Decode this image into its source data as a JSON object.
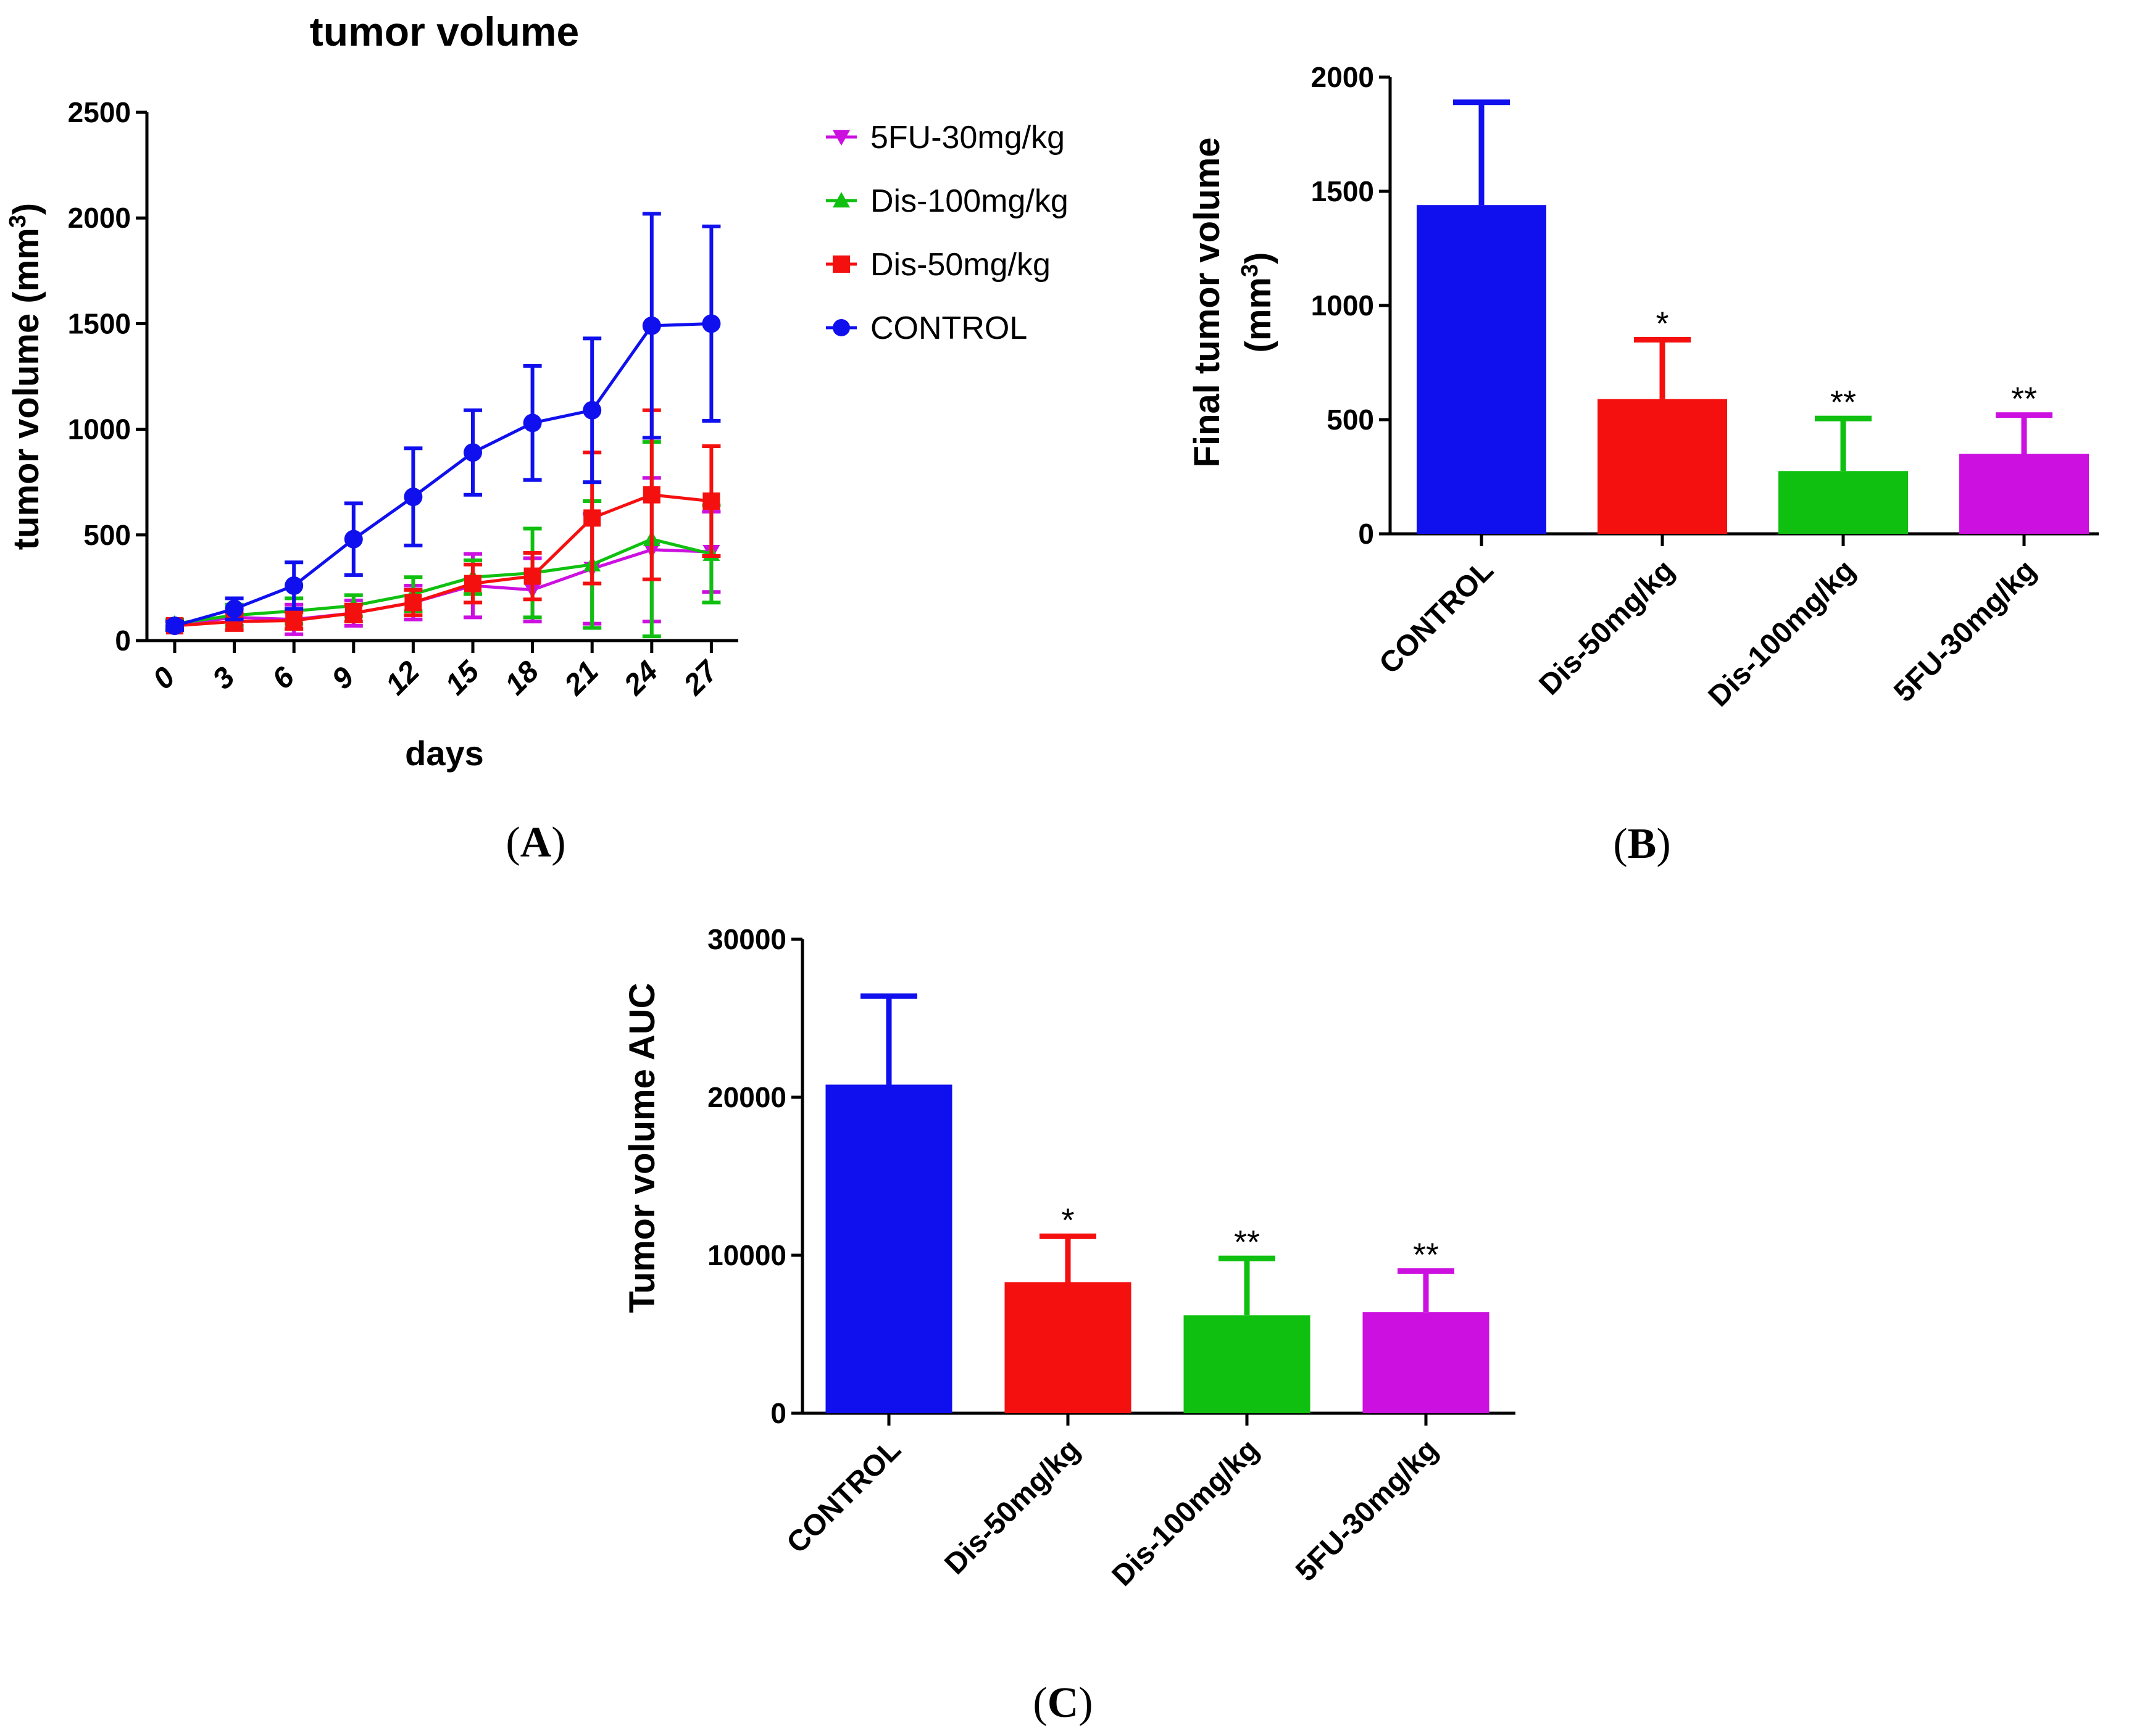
{
  "colors": {
    "CONTROL": "#1010ee",
    "Dis-50mg/kg": "#f51010",
    "Dis-100mg/kg": "#10c010",
    "5FU-30mg/kg": "#cc10e0"
  },
  "panel_labels": {
    "A": [
      "(",
      "A",
      ")"
    ],
    "B": [
      "(",
      "B",
      ")"
    ],
    "C": [
      "(",
      "C",
      ")"
    ]
  },
  "chart_data": [
    {
      "id": "A",
      "type": "line",
      "title": "tumor volume",
      "xlabel": "days",
      "ylabel_main": "tumor volume (mm",
      "ylabel_sup": "3",
      "ylabel_end": ")",
      "x": [
        0,
        3,
        6,
        9,
        12,
        15,
        18,
        21,
        24,
        27
      ],
      "ylim": [
        0,
        2500
      ],
      "yticks": [
        0,
        500,
        1000,
        1500,
        2000,
        2500
      ],
      "legend_position": "right",
      "legend_order": [
        "5FU-30mg/kg",
        "Dis-100mg/kg",
        "Dis-50mg/kg",
        "CONTROL"
      ],
      "series": [
        {
          "name": "5FU-30mg/kg",
          "marker": "triangle-down",
          "values": [
            75,
            110,
            100,
            130,
            180,
            260,
            240,
            340,
            430,
            420
          ],
          "err": [
            20,
            40,
            70,
            60,
            80,
            150,
            150,
            260,
            340,
            190
          ]
        },
        {
          "name": "Dis-100mg/kg",
          "marker": "triangle-up",
          "values": [
            80,
            120,
            140,
            165,
            220,
            300,
            320,
            360,
            480,
            410
          ],
          "err": [
            20,
            50,
            60,
            50,
            80,
            80,
            210,
            300,
            460,
            230
          ]
        },
        {
          "name": "Dis-50mg/kg",
          "marker": "square",
          "values": [
            70,
            90,
            95,
            130,
            180,
            270,
            305,
            580,
            690,
            660
          ],
          "err": [
            20,
            40,
            40,
            40,
            60,
            90,
            110,
            310,
            400,
            260
          ]
        },
        {
          "name": "CONTROL",
          "marker": "circle",
          "values": [
            70,
            150,
            260,
            480,
            680,
            890,
            1030,
            1090,
            1490,
            1500
          ],
          "err": [
            20,
            50,
            110,
            170,
            230,
            200,
            270,
            340,
            530,
            460
          ]
        }
      ]
    },
    {
      "id": "B",
      "type": "bar",
      "ylabel_line1": "Final tumor volume",
      "ylabel_line2_main": "(mm",
      "ylabel_line2_sup": "3",
      "ylabel_line2_end": ")",
      "categories": [
        "CONTROL",
        "Dis-50mg/kg",
        "Dis-100mg/kg",
        "5FU-30mg/kg"
      ],
      "values": [
        1440,
        590,
        275,
        350
      ],
      "err": [
        450,
        260,
        230,
        170
      ],
      "significance": [
        "",
        "*",
        "**",
        "**"
      ],
      "ylim": [
        0,
        2000
      ],
      "yticks": [
        0,
        500,
        1000,
        1500,
        2000
      ]
    },
    {
      "id": "C",
      "type": "bar",
      "ylabel": "Tumor volume AUC",
      "categories": [
        "CONTROL",
        "Dis-50mg/kg",
        "Dis-100mg/kg",
        "5FU-30mg/kg"
      ],
      "values": [
        20800,
        8300,
        6200,
        6400
      ],
      "err": [
        5600,
        2900,
        3600,
        2600
      ],
      "significance": [
        "",
        "*",
        "**",
        "**"
      ],
      "ylim": [
        0,
        30000
      ],
      "yticks": [
        0,
        10000,
        20000,
        30000
      ]
    }
  ]
}
